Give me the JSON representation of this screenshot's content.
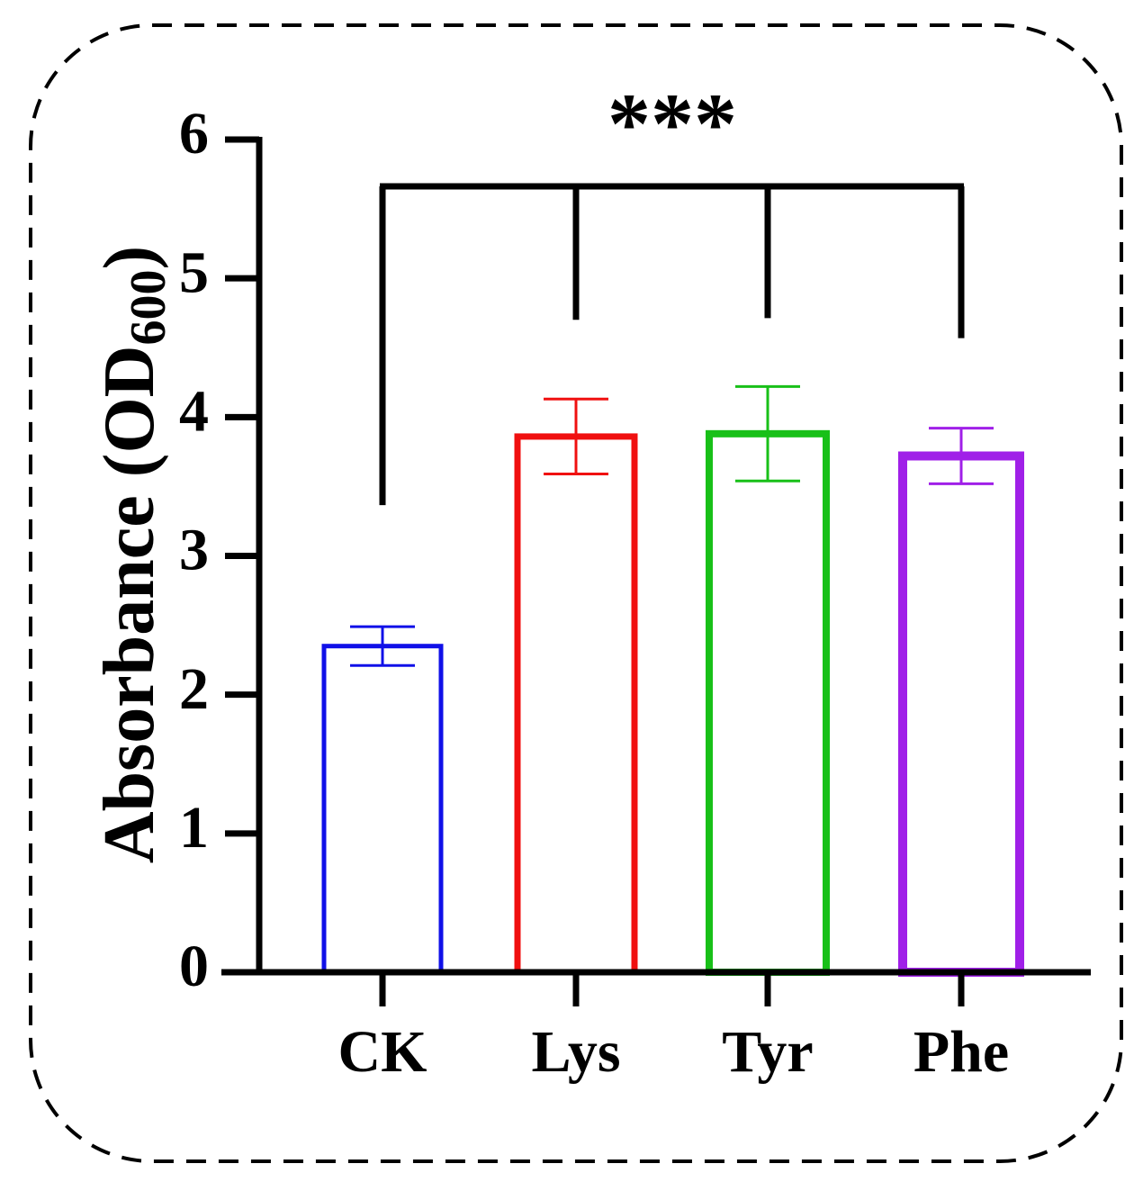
{
  "chart_data": {
    "type": "bar",
    "title": "",
    "xlabel": "",
    "ylabel": "Absorbance (OD",
    "ylabel_subscript": "600",
    "ylabel_close": ")",
    "ylim": [
      0,
      6
    ],
    "yticks": [
      "0",
      "1",
      "2",
      "3",
      "4",
      "5",
      "6"
    ],
    "categories": [
      "CK",
      "Lys",
      "Tyr",
      "Phe"
    ],
    "values": [
      2.35,
      3.86,
      3.88,
      3.72
    ],
    "errors": [
      0.14,
      0.27,
      0.34,
      0.2
    ],
    "colors": [
      "#1010e8",
      "#f01010",
      "#18c018",
      "#a020e8"
    ],
    "fill": "none",
    "significance": {
      "label": "***",
      "reference": "CK",
      "compared": [
        "Lys",
        "Tyr",
        "Phe"
      ]
    },
    "frame": "dashed rounded border"
  }
}
